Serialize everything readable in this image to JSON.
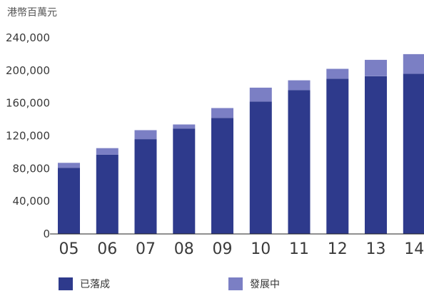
{
  "chart_data": {
    "type": "bar",
    "stacked": true,
    "unit_label": "港幣百萬元",
    "categories": [
      "05",
      "06",
      "07",
      "08",
      "09",
      "10",
      "11",
      "12",
      "13",
      "14"
    ],
    "series": [
      {
        "name": "已落成",
        "color": "#2e3a8c",
        "values": [
          81000,
          97000,
          116000,
          129000,
          142000,
          162000,
          176000,
          190000,
          193000,
          196000
        ]
      },
      {
        "name": "發展中",
        "color": "#7b7fc4",
        "values": [
          6000,
          8000,
          11000,
          5000,
          12000,
          17000,
          12000,
          12000,
          20000,
          24000
        ]
      }
    ],
    "ylim": [
      0,
      240000
    ],
    "yticks": [
      0,
      40000,
      80000,
      120000,
      160000,
      200000,
      240000
    ],
    "ytick_labels": [
      "0",
      "40,000",
      "80,000",
      "120,000",
      "160,000",
      "200,000",
      "240,000"
    ],
    "grid": false,
    "legend_position": "bottom"
  }
}
